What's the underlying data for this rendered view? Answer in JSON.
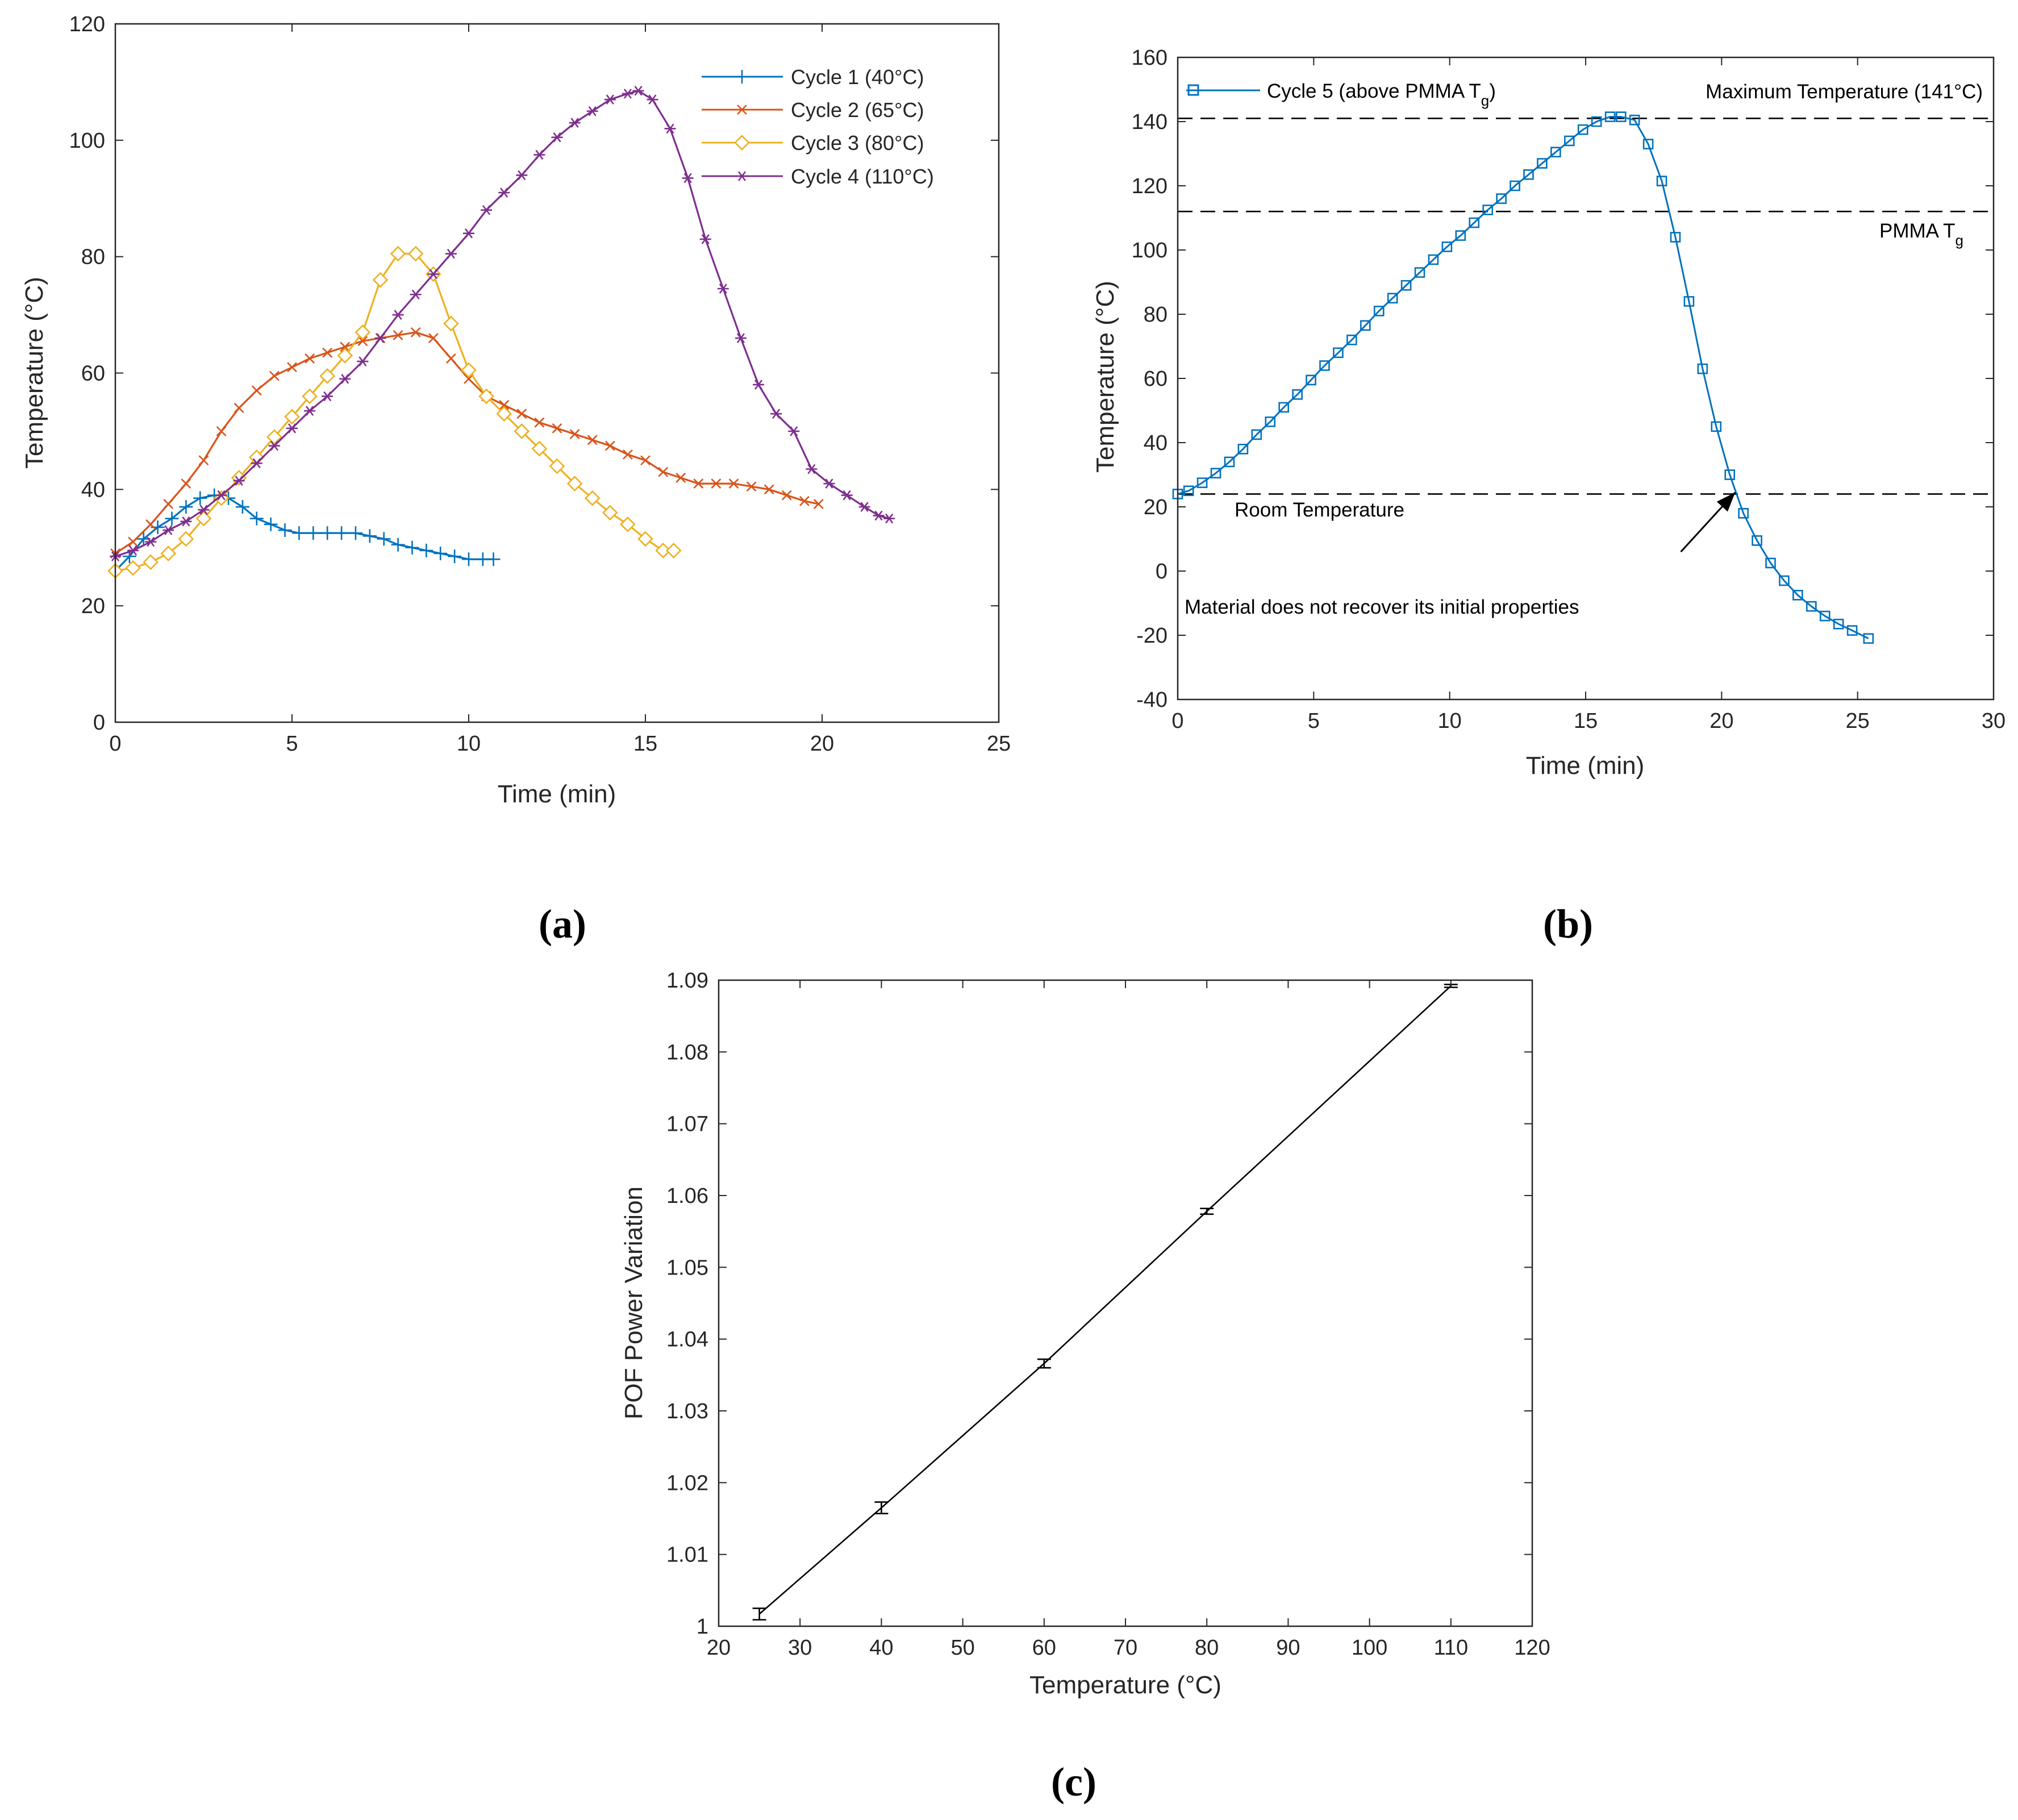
{
  "colors": {
    "cycle1": "#0072BD",
    "cycle2": "#D95319",
    "cycle3": "#EDB120",
    "cycle4": "#7E2F8E",
    "cycle5": "#0072BD",
    "axis": "#262626",
    "black": "#000000"
  },
  "captions": {
    "a": "(a)",
    "b": "(b)",
    "c": "(c)"
  },
  "chart_data": [
    {
      "id": "a",
      "type": "line",
      "xlabel": "Time (min)",
      "ylabel": "Temperature (°C)",
      "xlim": [
        0,
        25
      ],
      "ylim": [
        0,
        120
      ],
      "xticks": [
        0,
        5,
        10,
        15,
        20,
        25
      ],
      "yticks": [
        0,
        20,
        40,
        60,
        80,
        100,
        120
      ],
      "legend_position": "top-right",
      "grid": false,
      "series": [
        {
          "name": "Cycle 1 (40°C)",
          "marker": "plus",
          "color_key": "cycle1",
          "x": [
            0,
            0.4,
            0.8,
            1.2,
            1.6,
            2.0,
            2.4,
            2.8,
            3.2,
            3.6,
            4.0,
            4.4,
            4.8,
            5.2,
            5.6,
            6.0,
            6.4,
            6.8,
            7.2,
            7.6,
            8.0,
            8.4,
            8.8,
            9.2,
            9.6,
            10.0,
            10.4,
            10.7
          ],
          "y": [
            26,
            28.5,
            31.5,
            33.5,
            35,
            37,
            38.5,
            39,
            38.5,
            37,
            35,
            34,
            33,
            32.5,
            32.5,
            32.5,
            32.5,
            32.5,
            32,
            31.5,
            30.5,
            30,
            29.5,
            29,
            28.5,
            28,
            28,
            28
          ]
        },
        {
          "name": "Cycle 2 (65°C)",
          "marker": "x",
          "color_key": "cycle2",
          "x": [
            0,
            0.5,
            1.0,
            1.5,
            2.0,
            2.5,
            3.0,
            3.5,
            4.0,
            4.5,
            5.0,
            5.5,
            6.0,
            6.5,
            7.0,
            7.5,
            8.0,
            8.5,
            9.0,
            9.5,
            10.0,
            10.5,
            11.0,
            11.5,
            12.0,
            12.5,
            13.0,
            13.5,
            14.0,
            14.5,
            15.0,
            15.5,
            16.0,
            16.5,
            17.0,
            17.5,
            18.0,
            18.5,
            19.0,
            19.5,
            19.9
          ],
          "y": [
            29,
            31,
            34,
            37.5,
            41,
            45,
            50,
            54,
            57,
            59.5,
            61,
            62.5,
            63.5,
            64.5,
            65.5,
            66,
            66.5,
            67,
            66,
            62.5,
            59,
            56,
            54.5,
            53,
            51.5,
            50.5,
            49.5,
            48.5,
            47.5,
            46,
            45,
            43,
            42,
            41,
            41,
            41,
            40.5,
            40,
            39,
            38,
            37.5
          ]
        },
        {
          "name": "Cycle 3 (80°C)",
          "marker": "diamond",
          "color_key": "cycle3",
          "x": [
            0,
            0.5,
            1.0,
            1.5,
            2.0,
            2.5,
            3.0,
            3.5,
            4.0,
            4.5,
            5.0,
            5.5,
            6.0,
            6.5,
            7.0,
            7.5,
            8.0,
            8.5,
            9.0,
            9.5,
            10.0,
            10.5,
            11.0,
            11.5,
            12.0,
            12.5,
            13.0,
            13.5,
            14.0,
            14.5,
            15.0,
            15.5,
            15.8
          ],
          "y": [
            26,
            26.5,
            27.5,
            29,
            31.5,
            35,
            38.5,
            42,
            45.5,
            49,
            52.5,
            56,
            59.5,
            63,
            67,
            76,
            80.5,
            80.5,
            77,
            68.5,
            60.5,
            56,
            53,
            50,
            47,
            44,
            41,
            38.5,
            36,
            34,
            31.5,
            29.5,
            29.5
          ]
        },
        {
          "name": "Cycle 4 (110°C)",
          "marker": "asterisk",
          "color_key": "cycle4",
          "x": [
            0,
            0.5,
            1.0,
            1.5,
            2.0,
            2.5,
            3.0,
            3.5,
            4.0,
            4.5,
            5.0,
            5.5,
            6.0,
            6.5,
            7.0,
            7.5,
            8.0,
            8.5,
            9.0,
            9.5,
            10.0,
            10.5,
            11.0,
            11.5,
            12.0,
            12.5,
            13.0,
            13.5,
            14.0,
            14.5,
            14.8,
            15.2,
            15.7,
            16.2,
            16.7,
            17.2,
            17.7,
            18.2,
            18.7,
            19.2,
            19.7,
            20.2,
            20.7,
            21.2,
            21.6,
            21.9
          ],
          "y": [
            28.5,
            29.5,
            31,
            33,
            34.5,
            36.5,
            39,
            41.5,
            44.5,
            47.5,
            50.5,
            53.5,
            56,
            59,
            62,
            66,
            70,
            73.5,
            77,
            80.5,
            84,
            88,
            91,
            94,
            97.5,
            100.5,
            103,
            105,
            107,
            108,
            108.5,
            107,
            102,
            93.5,
            83,
            74.5,
            66,
            58,
            53,
            50,
            43.5,
            41,
            39,
            37,
            35.5,
            35
          ]
        }
      ]
    },
    {
      "id": "b",
      "type": "line",
      "xlabel": "Time (min)",
      "ylabel": "Temperature (°C)",
      "xlim": [
        0,
        30
      ],
      "ylim": [
        -40,
        160
      ],
      "xticks": [
        0,
        5,
        10,
        15,
        20,
        25,
        30
      ],
      "yticks": [
        -40,
        -20,
        0,
        20,
        40,
        60,
        80,
        100,
        120,
        140,
        160
      ],
      "legend_position": "top-left",
      "grid": false,
      "legend_label_main": "Cycle 5 (above PMMA T",
      "legend_label_sub": "g",
      "legend_label_close": ")",
      "annotations": {
        "max_temp_label": "Maximum Temperature (141°C)",
        "tg_label_main": "PMMA T",
        "tg_label_sub": "g",
        "room_label": "Room Temperature",
        "note": "Material does not recover its initial properties",
        "max_temp_value": 141,
        "tg_value": 112,
        "room_value": 24,
        "arrow_tip": [
          20.5,
          24.5
        ],
        "arrow_tail": [
          18.5,
          6
        ]
      },
      "series": [
        {
          "name": "Cycle 5 (above PMMA Tg)",
          "marker": "square",
          "color_key": "cycle5",
          "x": [
            0,
            0.4,
            0.9,
            1.4,
            1.9,
            2.4,
            2.9,
            3.4,
            3.9,
            4.4,
            4.9,
            5.4,
            5.9,
            6.4,
            6.9,
            7.4,
            7.9,
            8.4,
            8.9,
            9.4,
            9.9,
            10.4,
            10.9,
            11.4,
            11.9,
            12.4,
            12.9,
            13.4,
            13.9,
            14.4,
            14.9,
            15.4,
            15.9,
            16.3,
            16.8,
            17.3,
            17.8,
            18.3,
            18.8,
            19.3,
            19.8,
            20.3,
            20.8,
            21.3,
            21.8,
            22.3,
            22.8,
            23.3,
            23.8,
            24.3,
            24.8,
            25.4
          ],
          "y": [
            24,
            25,
            27.5,
            30.5,
            34,
            38,
            42.5,
            46.5,
            51,
            55,
            59.5,
            64,
            68,
            72,
            76.5,
            81,
            85,
            89,
            93,
            97,
            101,
            104.5,
            108.5,
            112.5,
            116,
            120,
            123.5,
            127,
            130.5,
            134,
            137.5,
            140,
            141.5,
            141.5,
            140.5,
            133,
            121.5,
            104,
            84,
            63,
            45,
            30,
            18,
            9.5,
            2.5,
            -3,
            -7.5,
            -11,
            -14,
            -16.5,
            -18.5,
            -21
          ]
        }
      ]
    },
    {
      "id": "c",
      "type": "line",
      "xlabel": "Temperature (°C)",
      "ylabel": "POF Power Variation",
      "xlim": [
        20,
        120
      ],
      "ylim": [
        1,
        1.09
      ],
      "xticks": [
        20,
        30,
        40,
        50,
        60,
        70,
        80,
        90,
        100,
        110,
        120
      ],
      "yticks": [
        "1",
        "1.01",
        "1.02",
        "1.03",
        "1.04",
        "1.05",
        "1.06",
        "1.07",
        "1.08",
        "1.09"
      ],
      "grid": false,
      "series": [
        {
          "name": "POF power variation",
          "marker": "errorbar",
          "color_key": "black",
          "x": [
            25,
            40,
            60,
            80,
            110
          ],
          "y": [
            1.0017,
            1.0165,
            1.0366,
            1.0578,
            1.0892
          ],
          "err": [
            0.0008,
            0.0008,
            0.0006,
            0.0004,
            0.0002
          ]
        }
      ]
    }
  ]
}
